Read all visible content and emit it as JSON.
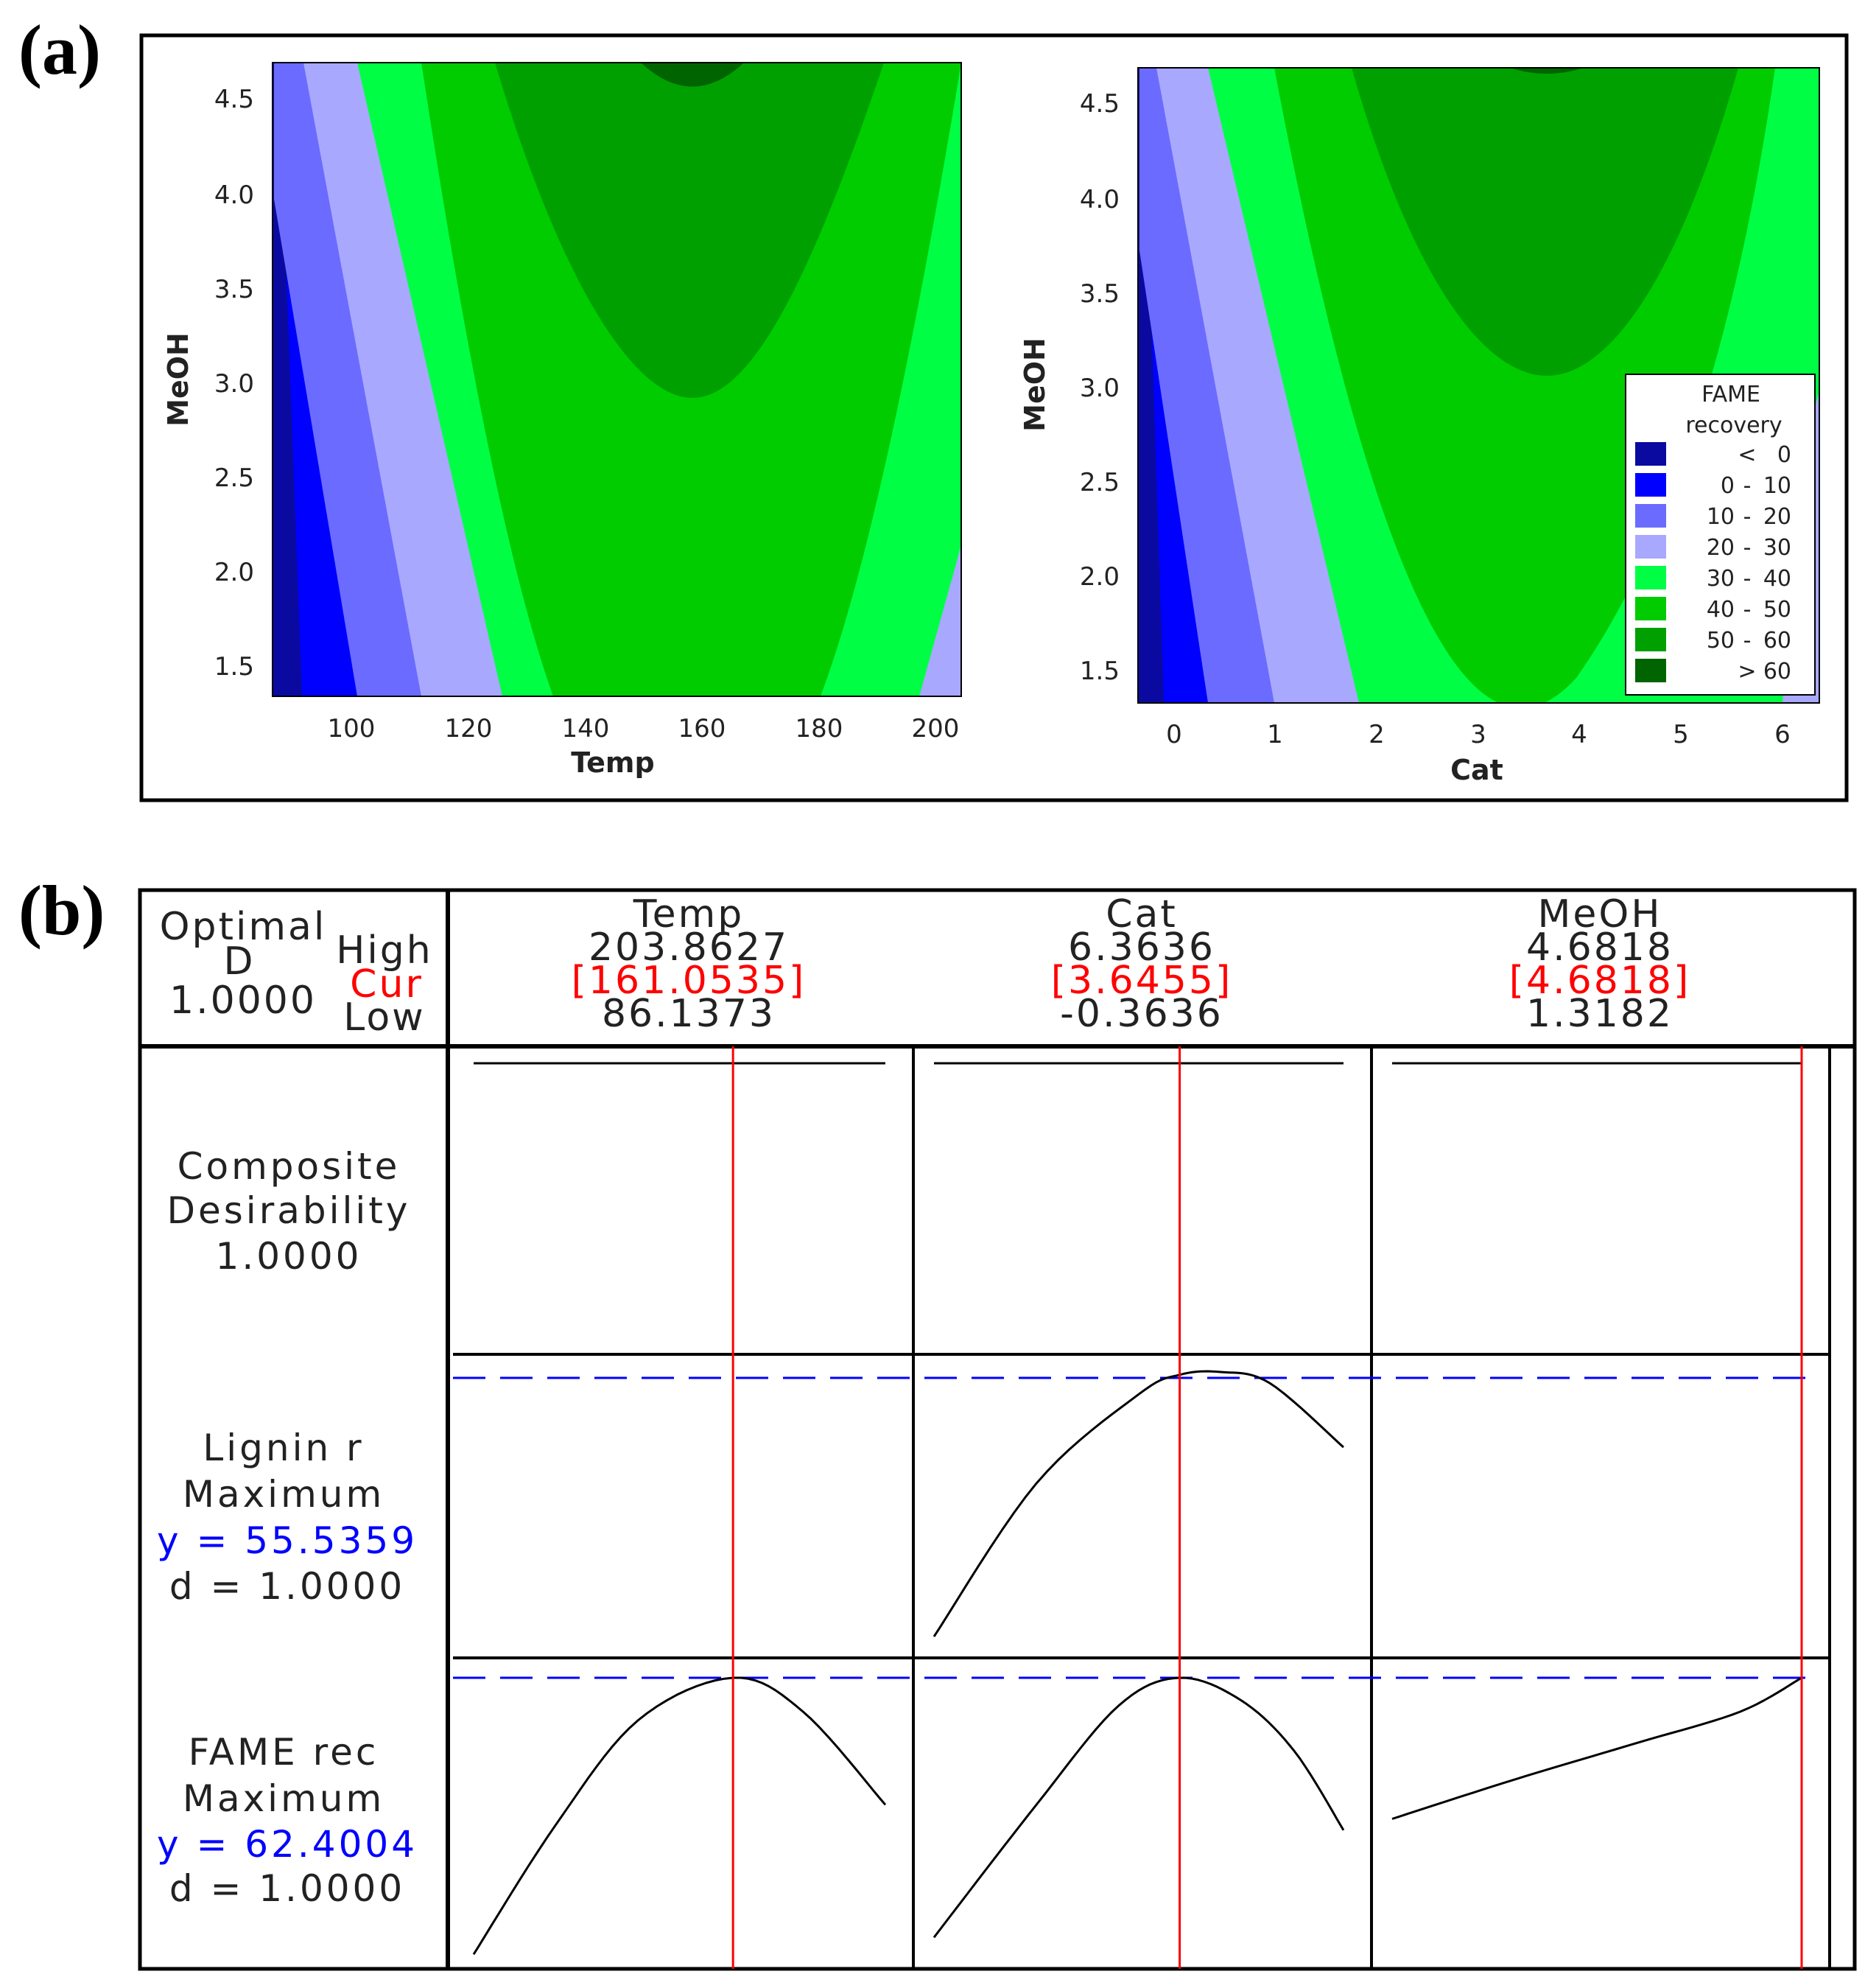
{
  "panel_labels": {
    "a": "(a)",
    "b": "(b)"
  },
  "colors": {
    "lt0": "#0a0aa0",
    "b0_10": "#0000ff",
    "b10_20": "#6b6bff",
    "b20_30": "#a8a8ff",
    "b30_40": "#00ff44",
    "b40_50": "#00cc00",
    "b50_60": "#00a000",
    "gt60": "#006400",
    "red": "#ff0000",
    "blue": "#0000ff"
  },
  "chart_data": [
    {
      "type": "contour",
      "xlabel": "Temp",
      "ylabel": "MeOH",
      "xlim": [
        86.1,
        203.9
      ],
      "ylim": [
        1.32,
        4.68
      ],
      "xticks": [
        "100",
        "120",
        "140",
        "160",
        "180",
        "200"
      ],
      "yticks": [
        "1.5",
        "2.0",
        "2.5",
        "3.0",
        "3.5",
        "4.0",
        "4.5"
      ],
      "optimum": {
        "x": 160,
        "y": 4.68,
        "z": 62
      }
    },
    {
      "type": "contour",
      "xlabel": "Cat",
      "ylabel": "MeOH",
      "xlim": [
        -0.36,
        6.36
      ],
      "ylim": [
        1.32,
        4.68
      ],
      "xticks": [
        "0",
        "1",
        "2",
        "3",
        "4",
        "5",
        "6"
      ],
      "yticks": [
        "1.5",
        "2.0",
        "2.5",
        "3.0",
        "3.5",
        "4.0",
        "4.5"
      ],
      "optimum": {
        "x": 3.65,
        "y": 4.68,
        "z": 62
      },
      "legend": {
        "title_line1": "FAME",
        "title_line2": "recovery",
        "entries": [
          {
            "op": "<",
            "lo": "",
            "hi": "0",
            "color": "#0a0aa0"
          },
          {
            "op": "-",
            "lo": "0",
            "hi": "10",
            "color": "#0000ff"
          },
          {
            "op": "-",
            "lo": "10",
            "hi": "20",
            "color": "#6b6bff"
          },
          {
            "op": "-",
            "lo": "20",
            "hi": "30",
            "color": "#a8a8ff"
          },
          {
            "op": "-",
            "lo": "30",
            "hi": "40",
            "color": "#00ff44"
          },
          {
            "op": "-",
            "lo": "40",
            "hi": "50",
            "color": "#00cc00"
          },
          {
            "op": "-",
            "lo": "50",
            "hi": "60",
            "color": "#00a000"
          },
          {
            "op": ">",
            "lo": "",
            "hi": "60",
            "color": "#006400"
          }
        ]
      }
    },
    {
      "type": "optimization_plot",
      "header": {
        "optimal": "Optimal",
        "d_label": "D",
        "d_value": "1.0000",
        "high": "High",
        "cur": "Cur",
        "low": "Low",
        "factors": [
          {
            "name": "Temp",
            "high": "203.8627",
            "cur": "[161.0535]",
            "low": "86.1373"
          },
          {
            "name": "Cat",
            "high": "6.3636",
            "cur": "[3.6455]",
            "low": "-0.3636"
          },
          {
            "name": "MeOH",
            "high": "4.6818",
            "cur": "[4.6818]",
            "low": "1.3182"
          }
        ]
      },
      "rows": [
        {
          "label1": "Composite",
          "label2": "Desirability",
          "label3": "1.0000"
        },
        {
          "label1": "Lignin r",
          "label2": "Maximum",
          "y_text": "y = 55.5359",
          "d_text": "d = 1.0000"
        },
        {
          "label1": "FAME rec",
          "label2": "Maximum",
          "y_text": "y = 62.4004",
          "d_text": "d = 1.0000"
        }
      ],
      "cur_fraction": [
        0.63,
        0.6,
        1.0
      ],
      "curves": {
        "lignin_cat": [
          [
            0.0,
            0.05
          ],
          [
            0.25,
            0.6
          ],
          [
            0.5,
            0.92
          ],
          [
            0.6,
            0.99
          ],
          [
            0.7,
            1.0
          ],
          [
            0.82,
            0.96
          ],
          [
            1.0,
            0.73
          ]
        ],
        "fame_temp": [
          [
            0.0,
            0.02
          ],
          [
            0.2,
            0.48
          ],
          [
            0.4,
            0.85
          ],
          [
            0.63,
            1.0
          ],
          [
            0.8,
            0.88
          ],
          [
            1.0,
            0.55
          ]
        ],
        "fame_cat": [
          [
            0.0,
            0.08
          ],
          [
            0.25,
            0.55
          ],
          [
            0.45,
            0.9
          ],
          [
            0.6,
            1.0
          ],
          [
            0.75,
            0.92
          ],
          [
            0.88,
            0.74
          ],
          [
            1.0,
            0.46
          ]
        ],
        "fame_meoh": [
          [
            0.0,
            0.5
          ],
          [
            0.3,
            0.64
          ],
          [
            0.6,
            0.77
          ],
          [
            0.85,
            0.88
          ],
          [
            1.0,
            1.0
          ]
        ]
      }
    }
  ]
}
